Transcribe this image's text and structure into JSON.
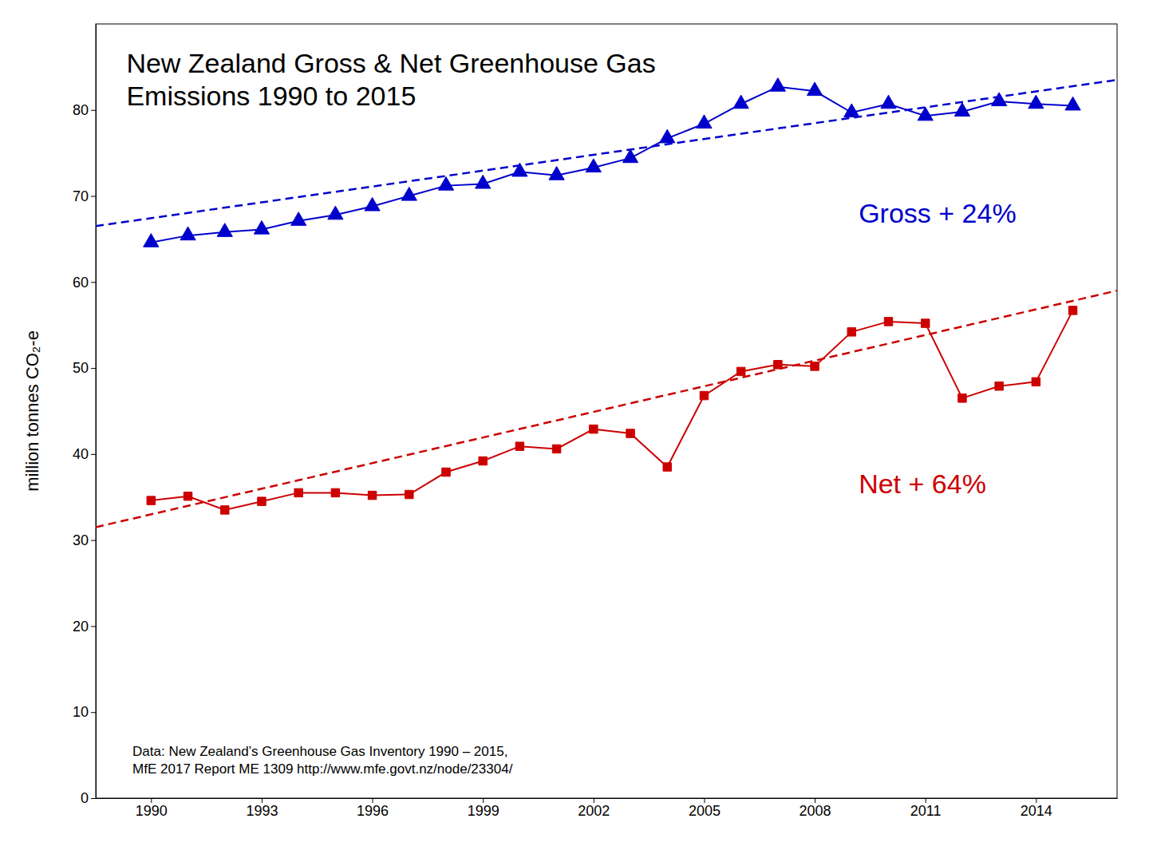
{
  "chart_data": {
    "type": "line",
    "title": "New Zealand Gross & Net Greenhouse Gas\nEmissions 1990 to 2015",
    "ylabel": "million tonnes CO₂-e",
    "x": [
      1990,
      1991,
      1992,
      1993,
      1994,
      1995,
      1996,
      1997,
      1998,
      1999,
      2000,
      2001,
      2002,
      2003,
      2004,
      2005,
      2006,
      2007,
      2008,
      2009,
      2010,
      2011,
      2012,
      2013,
      2014,
      2015
    ],
    "series": [
      {
        "type": "line",
        "color": "#0000cc",
        "marker": "triangle",
        "line_style": "solid",
        "values": [
          64.6,
          65.4,
          65.8,
          66.1,
          67.1,
          67.8,
          68.8,
          70.0,
          71.2,
          71.4,
          72.8,
          72.4,
          73.3,
          74.4,
          76.7,
          78.4,
          80.7,
          82.7,
          82.2,
          79.7,
          80.7,
          79.3,
          79.8,
          81.0,
          80.7,
          80.5
        ]
      },
      {
        "type": "line",
        "color": "#cc0000",
        "marker": "square",
        "line_style": "solid",
        "values": [
          34.6,
          35.1,
          33.5,
          34.5,
          35.5,
          35.5,
          35.2,
          35.3,
          37.9,
          39.2,
          40.9,
          40.6,
          42.9,
          42.4,
          38.5,
          46.8,
          49.6,
          50.4,
          50.2,
          54.2,
          55.4,
          55.2,
          46.5,
          47.9,
          48.4,
          56.7
        ]
      },
      {
        "type": "line",
        "color": "#0000cc",
        "marker": "none",
        "line_style": "dashed",
        "x": [
          1988.5,
          2016.2
        ],
        "values": [
          66.5,
          83.5
        ]
      },
      {
        "type": "line",
        "color": "#cc0000",
        "marker": "none",
        "line_style": "dashed",
        "x": [
          1988.5,
          2016.2
        ],
        "values": [
          31.5,
          59.0
        ]
      }
    ],
    "annotations": [
      {
        "text": "Gross + 24%",
        "color": "#0000cc"
      },
      {
        "text": "Net + 64%",
        "color": "#cc0000"
      },
      {
        "text": "Data: New Zealand’s Greenhouse Gas Inventory 1990 – 2015,\nMfE 2017 Report ME 1309 http://www.mfe.govt.nz/node/23304/",
        "color": "black"
      }
    ],
    "xlim": [
      1988.5,
      2016.2
    ],
    "ylim": [
      0,
      90
    ],
    "xticks": [
      1990,
      1993,
      1996,
      1999,
      2002,
      2005,
      2008,
      2011,
      2014
    ],
    "yticks": [
      0,
      10,
      20,
      30,
      40,
      50,
      60,
      70,
      80
    ],
    "grid": false
  }
}
